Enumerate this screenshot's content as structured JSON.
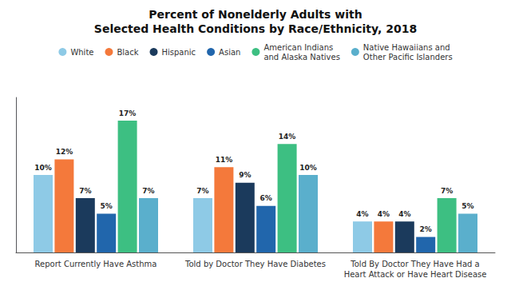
{
  "chart_data": {
    "type": "bar",
    "title": "Percent of Nonelderly Adults with\nSelected Health Conditions by Race/Ethnicity, 2018",
    "categories": [
      "Report Currently Have Asthma",
      "Told by Doctor They Have Diabetes",
      "Told By Doctor They Have Had a\nHeart Attack or Have Heart Disease"
    ],
    "series": [
      {
        "name": "White",
        "color": "#8ecae6",
        "values": [
          10,
          7,
          4
        ],
        "value_labels": [
          "10%",
          "7%",
          "4%"
        ]
      },
      {
        "name": "Black",
        "color": "#f4793b",
        "values": [
          12,
          11,
          4
        ],
        "value_labels": [
          "12%",
          "11%",
          "4%"
        ]
      },
      {
        "name": "Hispanic",
        "color": "#1b3a5c",
        "values": [
          7,
          9,
          4
        ],
        "value_labels": [
          "7%",
          "9%",
          "4%"
        ]
      },
      {
        "name": "Asian",
        "color": "#2166ac",
        "values": [
          5,
          6,
          2
        ],
        "value_labels": [
          "5%",
          "6%",
          "2%"
        ]
      },
      {
        "name": "American Indians\nand Alaska Natives",
        "color": "#3dbf82",
        "values": [
          17,
          14,
          7
        ],
        "value_labels": [
          "17%",
          "14%",
          "7%"
        ]
      },
      {
        "name": "Native Hawaiians and\nOther Pacific Islanders",
        "color": "#5aafcc",
        "values": [
          7,
          10,
          5
        ],
        "value_labels": [
          "7%",
          "10%",
          "5%"
        ]
      }
    ],
    "ylim": [
      0,
      20
    ],
    "yticks": [],
    "grid": false,
    "legend": "top",
    "data_labels": true,
    "tick_labels": "x"
  }
}
